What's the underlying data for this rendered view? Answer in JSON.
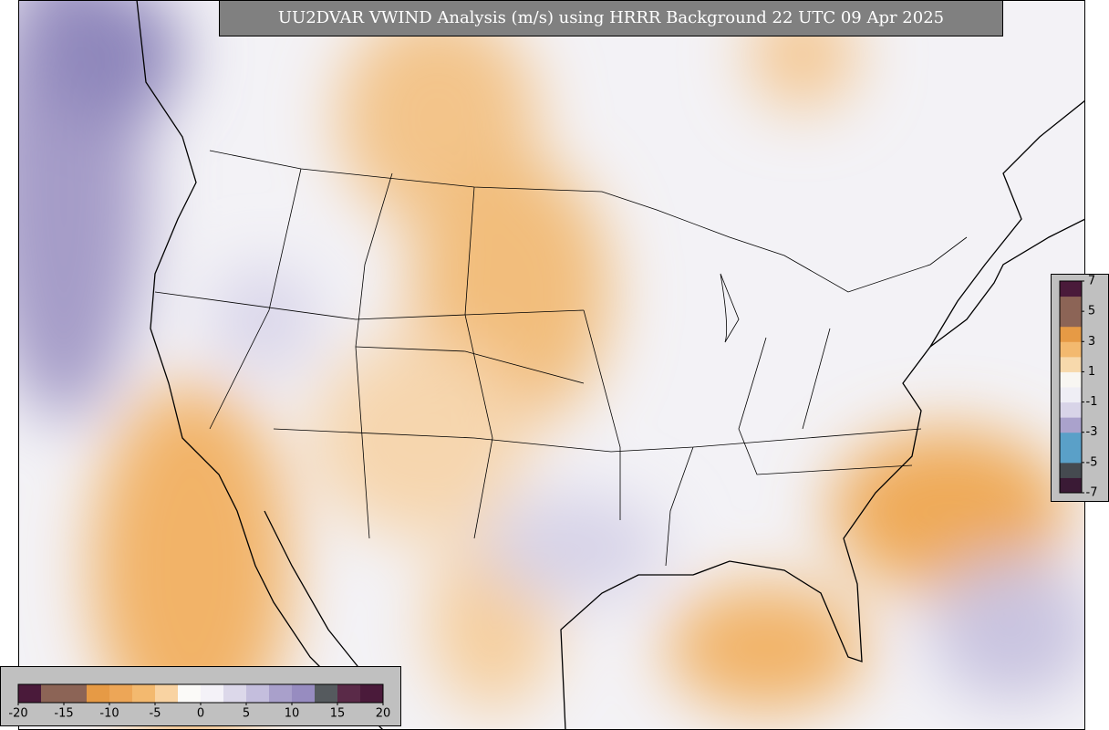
{
  "title": "UU2DVAR VWIND Analysis (m/s) using HRRR Background 22 UTC 09 Apr 2025",
  "main_colorbar": {
    "lim": [
      -20,
      20
    ],
    "ticks": [
      -20,
      -15,
      -10,
      -5,
      0,
      5,
      10,
      15,
      20
    ],
    "colors": [
      "#4a1a3a",
      "#8c6456",
      "#8c6456",
      "#e69a45",
      "#eda657",
      "#f3b96f",
      "#f9d3a2",
      "#fbfaf8",
      "#f4f2f8",
      "#dcd8ea",
      "#c4bedd",
      "#a9a0cb",
      "#978cc0",
      "#555a5e",
      "#5a2a48",
      "#4a1a3a"
    ]
  },
  "inset_colorbar": {
    "lim": [
      -7,
      7
    ],
    "ticks": [
      7,
      5,
      3,
      1,
      -1,
      -3,
      -5,
      -7
    ],
    "colors": [
      "#3a1a35",
      "#454a50",
      "#5aa0c8",
      "#5aa0c8",
      "#aaa2cc",
      "#d8d4e8",
      "#efeef5",
      "#f8f6f2",
      "#f7d9ac",
      "#f3b96f",
      "#e69a45",
      "#8c6456",
      "#8c6456",
      "#4a1a3a"
    ]
  }
}
